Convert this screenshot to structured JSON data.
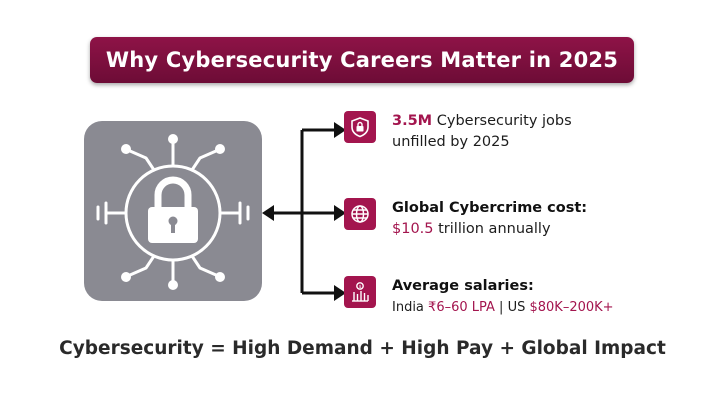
{
  "title": "Why Cybersecurity Careers Matter in 2025",
  "colors": {
    "accent": "#a3154e",
    "banner": "#7d1040",
    "panel": "#8a8a92",
    "text": "#1d1d1d"
  },
  "items": [
    {
      "icon": "shield-lock-icon",
      "highlight": "3.5M",
      "text_line1": " Cybersecurity jobs",
      "text_line2": "unfilled by 2025"
    },
    {
      "icon": "globe-icon",
      "heading": "Global Cybercrime cost:",
      "value": "$10.5",
      "suffix": " trillion annually"
    },
    {
      "icon": "salary-chart-icon",
      "heading": "Average salaries:",
      "india_label": "India ",
      "india_value": "₹6–60 LPA",
      "separator": " | ",
      "us_label": "US ",
      "us_value": "$80K–200K+"
    }
  ],
  "tagline": "Cybersecurity = High Demand + High Pay + Global Impact"
}
